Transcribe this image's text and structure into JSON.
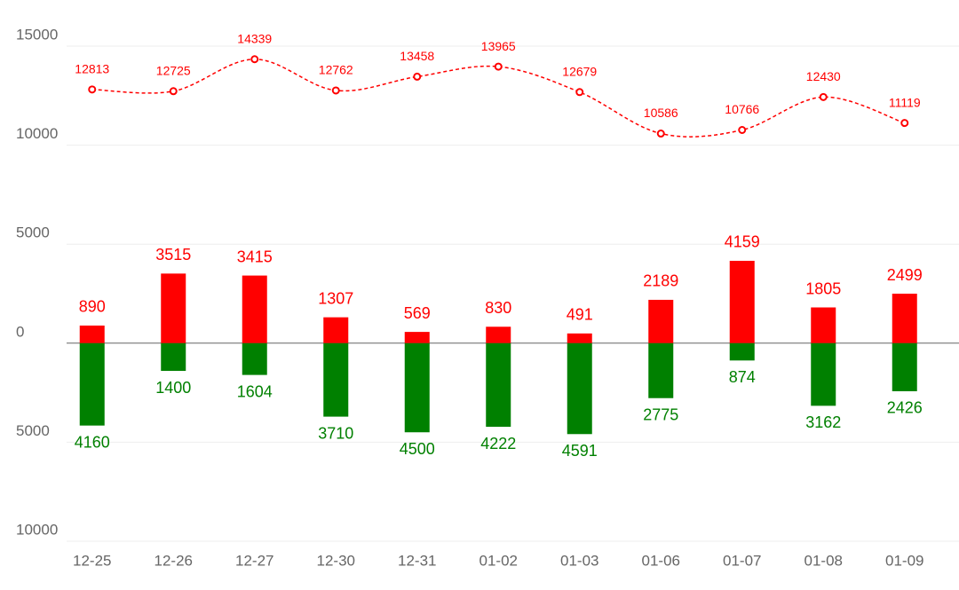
{
  "chart_data": {
    "type": "bar",
    "categories": [
      "12-25",
      "12-26",
      "12-27",
      "12-30",
      "12-31",
      "01-02",
      "01-03",
      "01-06",
      "01-07",
      "01-08",
      "01-09"
    ],
    "series": [
      {
        "type": "line",
        "color": "#ff0000",
        "values": [
          12813,
          12725,
          14339,
          12762,
          13458,
          13965,
          12679,
          10586,
          10766,
          12430,
          11119
        ]
      },
      {
        "type": "bar",
        "color": "#ff0000",
        "values": [
          890,
          3515,
          3415,
          1307,
          569,
          830,
          491,
          2189,
          4159,
          1805,
          2499
        ]
      },
      {
        "type": "bar",
        "color": "#008000",
        "values": [
          -4160,
          -1400,
          -1604,
          -3710,
          -4500,
          -4222,
          -4591,
          -2775,
          -874,
          -3162,
          -2426
        ],
        "value_labels": [
          "4160",
          "1400",
          "1604",
          "3710",
          "4500",
          "4222",
          "4591",
          "2775",
          "874",
          "3162",
          "2426"
        ]
      }
    ],
    "ylim": [
      -10000,
      15000
    ],
    "yticks": [
      15000,
      10000,
      5000,
      0,
      {
        "value": -5000,
        "label": "5000"
      },
      {
        "value": -10000,
        "label": "10000"
      }
    ],
    "grid": true
  }
}
